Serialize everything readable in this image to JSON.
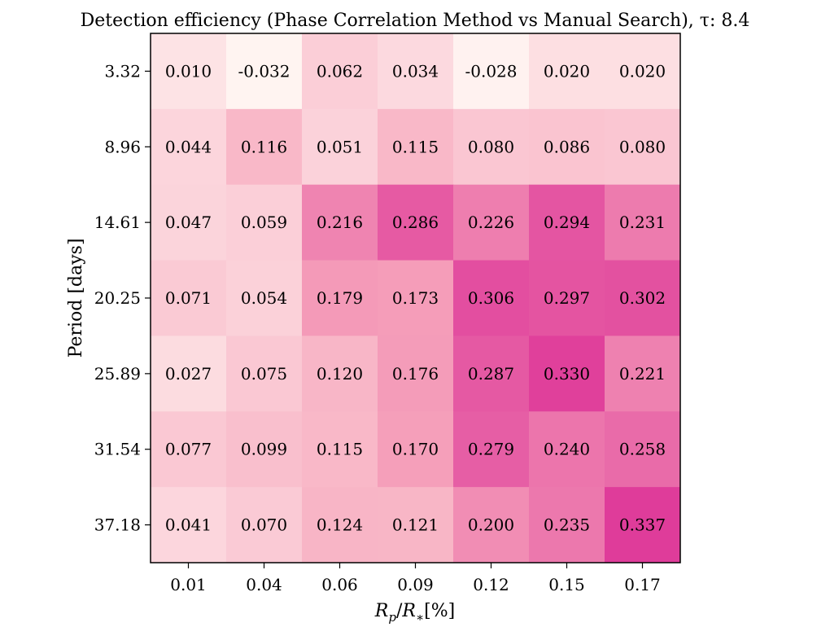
{
  "chart_data": {
    "type": "heatmap",
    "title": "Detection efficiency (Phase Correlation Method vs Manual Search), τ: 8.4",
    "xlabel": "Rp/R*[%]",
    "xlabel_parts": {
      "r": "R",
      "p_sub": "p",
      "slash": "/",
      "r2": "R",
      "star_sub": "∗",
      "unit": "[%]"
    },
    "ylabel": "Period [days]",
    "x_ticks": [
      "0.01",
      "0.04",
      "0.06",
      "0.09",
      "0.12",
      "0.15",
      "0.17"
    ],
    "y_ticks": [
      "3.32",
      "8.96",
      "14.61",
      "20.25",
      "25.89",
      "31.54",
      "37.18"
    ],
    "values": [
      [
        0.01,
        -0.032,
        0.062,
        0.034,
        -0.028,
        0.02,
        0.02
      ],
      [
        0.044,
        0.116,
        0.051,
        0.115,
        0.08,
        0.086,
        0.08
      ],
      [
        0.047,
        0.059,
        0.216,
        0.286,
        0.226,
        0.294,
        0.231
      ],
      [
        0.071,
        0.054,
        0.179,
        0.173,
        0.306,
        0.297,
        0.302
      ],
      [
        0.027,
        0.075,
        0.12,
        0.176,
        0.287,
        0.33,
        0.221
      ],
      [
        0.077,
        0.099,
        0.115,
        0.17,
        0.279,
        0.24,
        0.258
      ],
      [
        0.041,
        0.07,
        0.124,
        0.121,
        0.2,
        0.235,
        0.337
      ]
    ],
    "colormap": {
      "low": "#fff7f3",
      "mid": "#f7a8bd",
      "high": "#dd3497"
    },
    "value_range": [
      -0.04,
      0.35
    ],
    "grid": false,
    "legend": "none"
  }
}
